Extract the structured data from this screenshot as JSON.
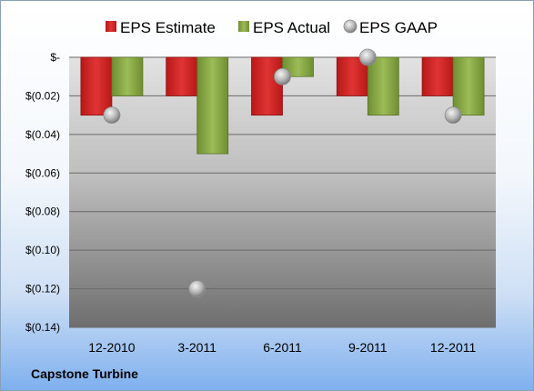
{
  "company": "Capstone Turbine",
  "colors": {
    "estimate": "#d82a2a",
    "actual": "#8fb04a",
    "gaap": "#b8b8b8"
  },
  "chart_data": {
    "type": "bar",
    "categories": [
      "12-2010",
      "3-2011",
      "6-2011",
      "9-2011",
      "12-2011"
    ],
    "series": [
      {
        "name": "EPS Estimate",
        "values": [
          -0.03,
          -0.02,
          -0.03,
          -0.02,
          -0.02
        ]
      },
      {
        "name": "EPS Actual",
        "values": [
          -0.02,
          -0.05,
          -0.01,
          -0.03,
          -0.03
        ]
      },
      {
        "name": "EPS GAAP",
        "type": "scatter",
        "values": [
          -0.03,
          -0.12,
          -0.01,
          0.0,
          -0.03
        ]
      }
    ],
    "ylim": [
      -0.14,
      0
    ],
    "yticks": [
      0,
      -0.02,
      -0.04,
      -0.06,
      -0.08,
      -0.1,
      -0.12,
      -0.14
    ],
    "ytick_labels": [
      "$-",
      "$(0.02)",
      "$(0.04)",
      "$(0.06)",
      "$(0.08)",
      "$(0.10)",
      "$(0.12)",
      "$(0.14)"
    ],
    "grid": true,
    "legend_position": "top"
  }
}
